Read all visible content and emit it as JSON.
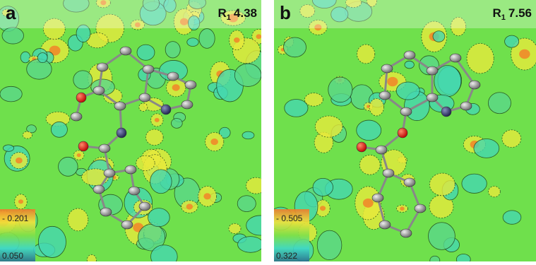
{
  "panels": [
    {
      "label": "a",
      "r_symbol": "R",
      "r_subscript": "1",
      "r_value": "4.38",
      "scale_max": "- 0.201",
      "scale_min": "0.050"
    },
    {
      "label": "b",
      "r_symbol": "R",
      "r_subscript": "1",
      "r_value": "7.56",
      "scale_max": "- 0.505",
      "scale_min": "0.322"
    }
  ]
}
